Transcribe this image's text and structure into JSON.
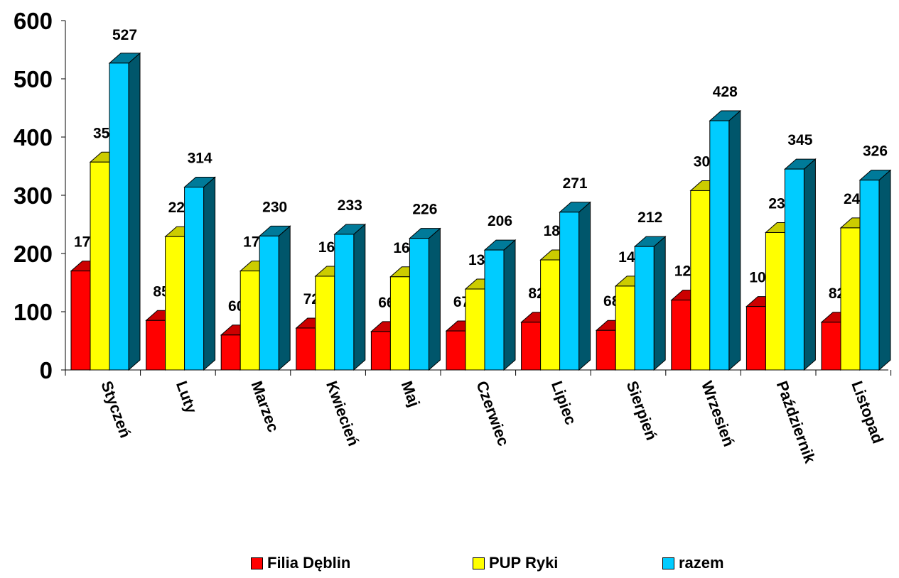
{
  "chart_data": {
    "type": "bar",
    "style": "3d-clustered-column",
    "categories": [
      "Styczeń",
      "Luty",
      "Marzec",
      "Kwiecień",
      "Maj",
      "Czerwiec",
      "Lipiec",
      "Sierpień",
      "Wrzesień",
      "Październik",
      "Listopad"
    ],
    "series": [
      {
        "name": "Filia Dęblin",
        "color": "#ff0000",
        "values": [
          170,
          85,
          60,
          72,
          66,
          67,
          82,
          68,
          120,
          109,
          82
        ]
      },
      {
        "name": "PUP Ryki",
        "color": "#ffff00",
        "values": [
          357,
          229,
          170,
          161,
          160,
          139,
          189,
          144,
          308,
          236,
          244
        ]
      },
      {
        "name": "razem",
        "color": "#00ccff",
        "values": [
          527,
          314,
          230,
          233,
          226,
          206,
          271,
          212,
          428,
          345,
          326
        ]
      }
    ],
    "yticks": [
      "0",
      "100",
      "200",
      "300",
      "400",
      "500",
      "600"
    ],
    "ylim": [
      0,
      600
    ],
    "grid": false,
    "legend": "bottom",
    "title": "",
    "xlabel": "",
    "ylabel": ""
  }
}
